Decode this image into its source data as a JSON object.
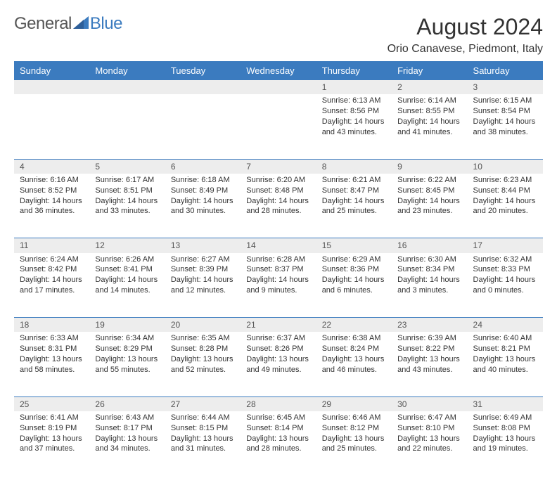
{
  "logo": {
    "text1": "General",
    "text2": "Blue"
  },
  "title": "August 2024",
  "location": "Orio Canavese, Piedmont, Italy",
  "colors": {
    "header_bg": "#3b7bbf",
    "header_text": "#ffffff",
    "daynum_bg": "#ededed",
    "row_border": "#3b7bbf",
    "body_text": "#333333"
  },
  "weekdays": [
    "Sunday",
    "Monday",
    "Tuesday",
    "Wednesday",
    "Thursday",
    "Friday",
    "Saturday"
  ],
  "weeks": [
    [
      null,
      null,
      null,
      null,
      {
        "n": "1",
        "sr": "6:13 AM",
        "ss": "8:56 PM",
        "dl": "14 hours and 43 minutes."
      },
      {
        "n": "2",
        "sr": "6:14 AM",
        "ss": "8:55 PM",
        "dl": "14 hours and 41 minutes."
      },
      {
        "n": "3",
        "sr": "6:15 AM",
        "ss": "8:54 PM",
        "dl": "14 hours and 38 minutes."
      }
    ],
    [
      {
        "n": "4",
        "sr": "6:16 AM",
        "ss": "8:52 PM",
        "dl": "14 hours and 36 minutes."
      },
      {
        "n": "5",
        "sr": "6:17 AM",
        "ss": "8:51 PM",
        "dl": "14 hours and 33 minutes."
      },
      {
        "n": "6",
        "sr": "6:18 AM",
        "ss": "8:49 PM",
        "dl": "14 hours and 30 minutes."
      },
      {
        "n": "7",
        "sr": "6:20 AM",
        "ss": "8:48 PM",
        "dl": "14 hours and 28 minutes."
      },
      {
        "n": "8",
        "sr": "6:21 AM",
        "ss": "8:47 PM",
        "dl": "14 hours and 25 minutes."
      },
      {
        "n": "9",
        "sr": "6:22 AM",
        "ss": "8:45 PM",
        "dl": "14 hours and 23 minutes."
      },
      {
        "n": "10",
        "sr": "6:23 AM",
        "ss": "8:44 PM",
        "dl": "14 hours and 20 minutes."
      }
    ],
    [
      {
        "n": "11",
        "sr": "6:24 AM",
        "ss": "8:42 PM",
        "dl": "14 hours and 17 minutes."
      },
      {
        "n": "12",
        "sr": "6:26 AM",
        "ss": "8:41 PM",
        "dl": "14 hours and 14 minutes."
      },
      {
        "n": "13",
        "sr": "6:27 AM",
        "ss": "8:39 PM",
        "dl": "14 hours and 12 minutes."
      },
      {
        "n": "14",
        "sr": "6:28 AM",
        "ss": "8:37 PM",
        "dl": "14 hours and 9 minutes."
      },
      {
        "n": "15",
        "sr": "6:29 AM",
        "ss": "8:36 PM",
        "dl": "14 hours and 6 minutes."
      },
      {
        "n": "16",
        "sr": "6:30 AM",
        "ss": "8:34 PM",
        "dl": "14 hours and 3 minutes."
      },
      {
        "n": "17",
        "sr": "6:32 AM",
        "ss": "8:33 PM",
        "dl": "14 hours and 0 minutes."
      }
    ],
    [
      {
        "n": "18",
        "sr": "6:33 AM",
        "ss": "8:31 PM",
        "dl": "13 hours and 58 minutes."
      },
      {
        "n": "19",
        "sr": "6:34 AM",
        "ss": "8:29 PM",
        "dl": "13 hours and 55 minutes."
      },
      {
        "n": "20",
        "sr": "6:35 AM",
        "ss": "8:28 PM",
        "dl": "13 hours and 52 minutes."
      },
      {
        "n": "21",
        "sr": "6:37 AM",
        "ss": "8:26 PM",
        "dl": "13 hours and 49 minutes."
      },
      {
        "n": "22",
        "sr": "6:38 AM",
        "ss": "8:24 PM",
        "dl": "13 hours and 46 minutes."
      },
      {
        "n": "23",
        "sr": "6:39 AM",
        "ss": "8:22 PM",
        "dl": "13 hours and 43 minutes."
      },
      {
        "n": "24",
        "sr": "6:40 AM",
        "ss": "8:21 PM",
        "dl": "13 hours and 40 minutes."
      }
    ],
    [
      {
        "n": "25",
        "sr": "6:41 AM",
        "ss": "8:19 PM",
        "dl": "13 hours and 37 minutes."
      },
      {
        "n": "26",
        "sr": "6:43 AM",
        "ss": "8:17 PM",
        "dl": "13 hours and 34 minutes."
      },
      {
        "n": "27",
        "sr": "6:44 AM",
        "ss": "8:15 PM",
        "dl": "13 hours and 31 minutes."
      },
      {
        "n": "28",
        "sr": "6:45 AM",
        "ss": "8:14 PM",
        "dl": "13 hours and 28 minutes."
      },
      {
        "n": "29",
        "sr": "6:46 AM",
        "ss": "8:12 PM",
        "dl": "13 hours and 25 minutes."
      },
      {
        "n": "30",
        "sr": "6:47 AM",
        "ss": "8:10 PM",
        "dl": "13 hours and 22 minutes."
      },
      {
        "n": "31",
        "sr": "6:49 AM",
        "ss": "8:08 PM",
        "dl": "13 hours and 19 minutes."
      }
    ]
  ],
  "labels": {
    "sunrise": "Sunrise:",
    "sunset": "Sunset:",
    "daylight": "Daylight:"
  }
}
